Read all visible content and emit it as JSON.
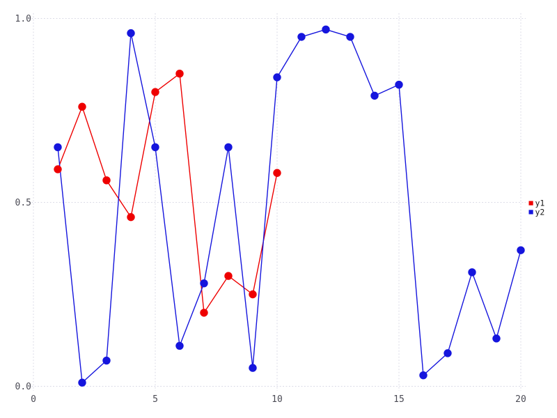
{
  "chart_data": {
    "type": "line",
    "title": "",
    "xlabel": "",
    "ylabel": "",
    "background_color": "#ffffff",
    "grid": {
      "visible": true,
      "style": "dotted",
      "color": "#d8d8e4"
    },
    "tick_label_color": "#4b4b55",
    "x_tick_labels": [
      "0",
      "5",
      "10",
      "15",
      "20"
    ],
    "x_tick_values": [
      0,
      5,
      10,
      15,
      20
    ],
    "y_tick_labels": [
      "0.0",
      "0.5",
      "1.0"
    ],
    "y_tick_values": [
      0,
      0.5,
      1
    ],
    "xlim": [
      -0.2,
      20.2
    ],
    "ylim": [
      -0.013,
      1.013
    ],
    "legend": {
      "position": "outside-right-center",
      "entries": [
        {
          "label": "y1",
          "color": "#ee0000"
        },
        {
          "label": "y2",
          "color": "#1515dd"
        }
      ]
    },
    "series": [
      {
        "name": "y1",
        "style": "line-with-circle-markers",
        "color": "#ee0000",
        "x": [
          1,
          2,
          3,
          4,
          5,
          6,
          7,
          8,
          9,
          10
        ],
        "values": [
          0.59,
          0.76,
          0.56,
          0.46,
          0.8,
          0.85,
          0.2,
          0.3,
          0.25,
          0.58
        ]
      },
      {
        "name": "y2",
        "style": "line-with-circle-markers",
        "color": "#1515dd",
        "x": [
          1,
          2,
          3,
          4,
          5,
          6,
          7,
          8,
          9,
          10,
          11,
          12,
          13,
          14,
          15,
          16,
          17,
          18,
          19,
          20
        ],
        "values": [
          0.65,
          0.01,
          0.07,
          0.96,
          0.65,
          0.11,
          0.28,
          0.65,
          0.05,
          0.84,
          0.95,
          0.97,
          0.95,
          0.79,
          0.82,
          0.03,
          0.09,
          0.31,
          0.13,
          0.37
        ]
      }
    ]
  }
}
